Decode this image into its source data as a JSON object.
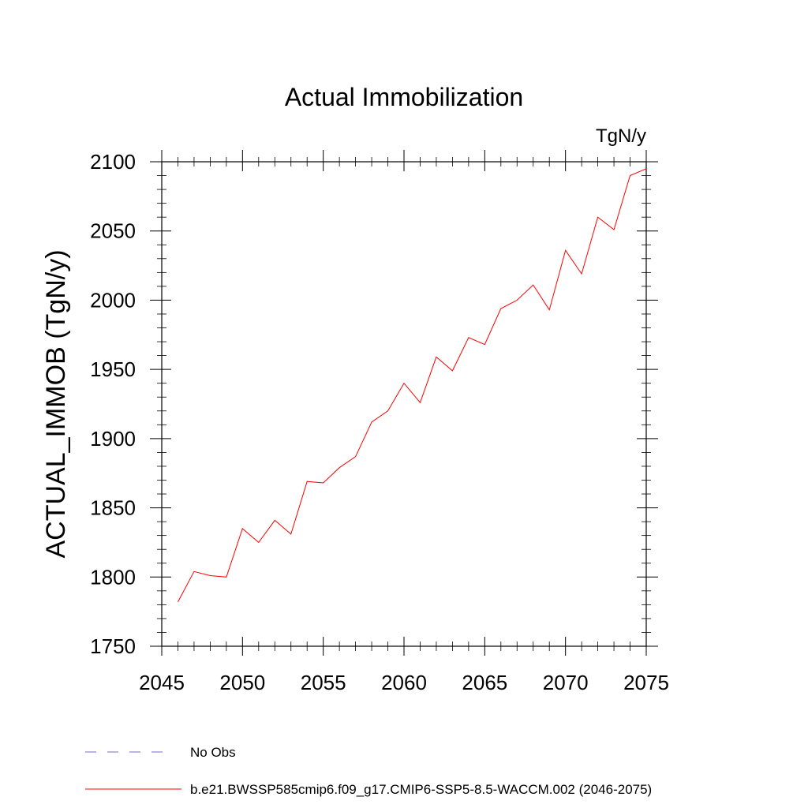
{
  "chart_data": {
    "type": "line",
    "title": "Actual Immobilization",
    "units_label": "TgN/y",
    "ylabel": "ACTUAL_IMMOB  (TgN/y)",
    "xlabel": "",
    "xlim": [
      2045,
      2075
    ],
    "ylim": [
      1750,
      2100
    ],
    "x_ticks": [
      2045,
      2050,
      2055,
      2060,
      2065,
      2070,
      2075
    ],
    "y_ticks": [
      1750,
      1800,
      1850,
      1900,
      1950,
      2000,
      2050,
      2100
    ],
    "x_tick_labels": [
      "2045",
      "2050",
      "2055",
      "2060",
      "2065",
      "2070",
      "2075"
    ],
    "y_tick_labels": [
      "1750",
      "1800",
      "1850",
      "1900",
      "1950",
      "2000",
      "2050",
      "2100"
    ],
    "grid": false,
    "legend_position": "bottom-left",
    "series": [
      {
        "name": "b.e21.BWSSP585cmip6.f09_g17.CMIP6-SSP5-8.5-WACCM.002 (2046-2075)",
        "color": "#ff0000",
        "style": "solid",
        "x": [
          2046,
          2047,
          2048,
          2049,
          2050,
          2051,
          2052,
          2053,
          2054,
          2055,
          2056,
          2057,
          2058,
          2059,
          2060,
          2061,
          2062,
          2063,
          2064,
          2065,
          2066,
          2067,
          2068,
          2069,
          2070,
          2071,
          2072,
          2073,
          2074,
          2075
        ],
        "values": [
          1782,
          1804,
          1801,
          1800,
          1835,
          1825,
          1841,
          1831,
          1869,
          1868,
          1879,
          1887,
          1912,
          1920,
          1940,
          1926,
          1959,
          1949,
          1973,
          1968,
          1994,
          2000,
          2011,
          1993,
          2036,
          2019,
          2060,
          2051,
          2090,
          2095
        ]
      }
    ],
    "legend": [
      {
        "label": "No Obs",
        "color": "#7b68c8",
        "style": "dashed"
      },
      {
        "label": "b.e21.BWSSP585cmip6.f09_g17.CMIP6-SSP5-8.5-WACCM.002 (2046-2075)",
        "color": "#ff0000",
        "style": "solid"
      }
    ]
  }
}
